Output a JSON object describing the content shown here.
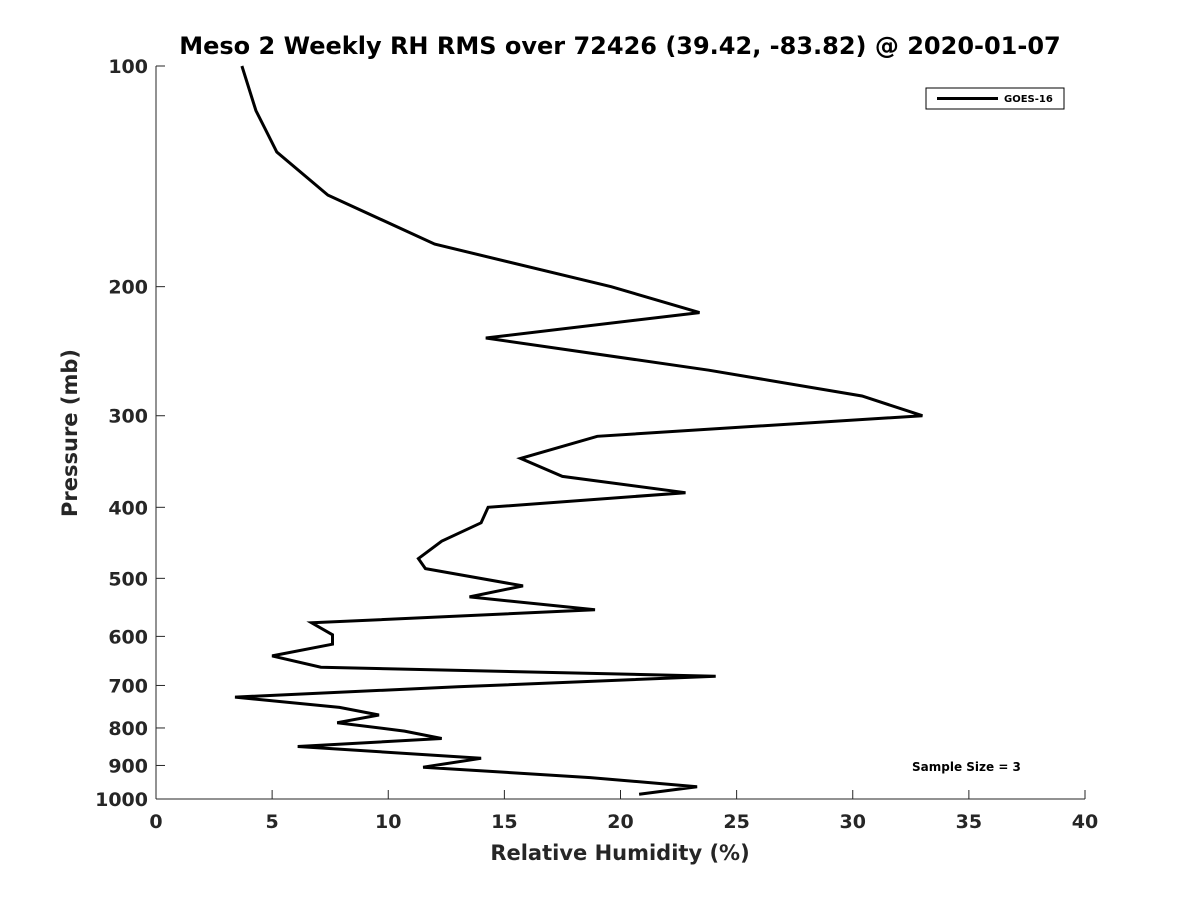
{
  "chart_data": {
    "type": "line",
    "title": "Meso 2 Weekly RH RMS over 72426 (39.42, -83.82) @ 2020-01-07",
    "xlabel": "Relative Humidity (%)",
    "ylabel": "Pressure (mb)",
    "xlim": [
      0,
      40
    ],
    "ylim": [
      100,
      1000
    ],
    "yscale": "log",
    "y_reversed": true,
    "xticks": [
      0,
      5,
      10,
      15,
      20,
      25,
      30,
      35,
      40
    ],
    "yticks": [
      100,
      200,
      300,
      400,
      500,
      600,
      700,
      800,
      900,
      1000
    ],
    "grid": false,
    "legend_position": "top-right",
    "annotation": "Sample Size = 3",
    "series": [
      {
        "name": "GOES-16",
        "color": "#000000",
        "x": [
          3.7,
          4.3,
          5.2,
          7.4,
          12.0,
          19.6,
          23.4,
          14.2,
          23.8,
          30.4,
          33.0,
          19.0,
          15.7,
          17.5,
          22.8,
          14.3,
          14.0,
          12.3,
          11.3,
          11.6,
          15.8,
          13.5,
          18.9,
          6.7,
          7.6,
          7.6,
          5.0,
          7.1,
          24.1,
          13.0,
          3.4,
          7.9,
          9.6,
          7.8,
          10.7,
          12.3,
          6.1,
          14.0,
          11.5,
          18.7,
          23.3,
          20.8
        ],
        "y": [
          100,
          115,
          131,
          150,
          175,
          200,
          217,
          235,
          260,
          282,
          300,
          320,
          343,
          363,
          382,
          400,
          420,
          445,
          470,
          485,
          512,
          530,
          552,
          575,
          597,
          615,
          638,
          661,
          680,
          703,
          726,
          750,
          768,
          787,
          808,
          827,
          848,
          880,
          905,
          935,
          962,
          985
        ]
      }
    ]
  }
}
